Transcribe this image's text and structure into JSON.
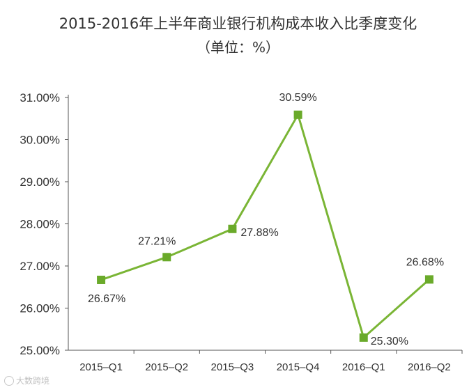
{
  "chart_data": {
    "type": "line",
    "title": "2015-2016年上半年商业银行机构成本收入比季度变化",
    "subtitle": "（单位：%）",
    "categories": [
      "2015–Q1",
      "2015–Q2",
      "2015–Q3",
      "2015–Q4",
      "2016–Q1",
      "2016–Q2"
    ],
    "series": [
      {
        "values": [
          26.67,
          27.21,
          27.88,
          30.59,
          25.3,
          26.68
        ]
      }
    ],
    "data_labels": [
      "26.67%",
      "27.21%",
      "27.88%",
      "30.59%",
      "25.30%",
      "26.68%"
    ],
    "yticks": [
      "25.00%",
      "26.00%",
      "27.00%",
      "28.00%",
      "29.00%",
      "30.00%",
      "31.00%"
    ],
    "ylim": [
      25,
      31
    ],
    "grid": false,
    "line_color": "#7ab535",
    "marker_color": "#6aaa2a"
  },
  "watermark": {
    "text": "大数跨境"
  }
}
